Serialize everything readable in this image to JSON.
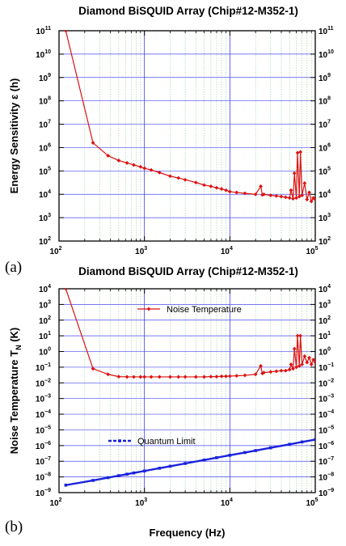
{
  "chart_data": [
    {
      "panel_label": "(a)",
      "type": "line",
      "title": "Diamond BiSQUID Array (Chip#12-M352-1)",
      "xlabel": "",
      "ylabel": "Energy Sensitivity ε (h)",
      "xscale": "log",
      "yscale": "log",
      "xlim": [
        100,
        100000
      ],
      "ylim": [
        100,
        100000000000
      ],
      "x_ticks": [
        100,
        1000,
        10000,
        100000
      ],
      "y_ticks": [
        100,
        1000,
        10000,
        100000,
        1000000,
        10000000,
        100000000,
        1000000000,
        10000000000,
        100000000000
      ],
      "grid": true,
      "right_axis_mirrored": true,
      "series": [
        {
          "name": "",
          "color": "#dd1111",
          "marker": "diamond",
          "x": [
            120,
            250,
            375,
            500,
            625,
            750,
            900,
            1000,
            1200,
            1500,
            2000,
            2500,
            3000,
            4000,
            5000,
            6000,
            7000,
            8000,
            9000,
            10000,
            12000,
            15000,
            20000,
            23000,
            24000,
            25000,
            30000,
            35000,
            40000,
            45000,
            50000,
            52000,
            55000,
            57000,
            60000,
            62000,
            65000,
            67000,
            70000,
            75000,
            80000,
            85000,
            90000,
            95000,
            100000
          ],
          "y": [
            100000000000,
            1600000,
            450000,
            280000,
            220000,
            180000,
            150000,
            130000,
            110000,
            85000,
            60000,
            50000,
            42000,
            32000,
            25000,
            22000,
            19000,
            17000,
            15000,
            13000,
            12000,
            11000,
            10000,
            22000,
            9500,
            10000,
            9000,
            8500,
            8000,
            7500,
            7000,
            15000,
            6500,
            80000,
            7000,
            600000,
            8000,
            650000,
            9000,
            30000,
            6000,
            12000,
            5000,
            7000,
            6000
          ]
        }
      ]
    },
    {
      "panel_label": "(b)",
      "type": "line",
      "title": "Diamond BiSQUID Array (Chip#12-M352-1)",
      "xlabel": "Frequency (Hz)",
      "ylabel": "Noise Temperature T",
      "ylabel_sub": "N",
      "ylabel_unit": " (K)",
      "xscale": "log",
      "yscale": "log",
      "xlim": [
        100,
        100000
      ],
      "ylim": [
        1e-09,
        10000
      ],
      "x_ticks": [
        100,
        1000,
        10000,
        100000
      ],
      "y_ticks": [
        1e-09,
        1e-08,
        1e-07,
        1e-06,
        1e-05,
        0.0001,
        0.001,
        0.01,
        0.1,
        1,
        10,
        100,
        1000,
        10000
      ],
      "grid": true,
      "right_axis_mirrored": true,
      "series": [
        {
          "name": "Noise Temperature",
          "color": "#dd1111",
          "marker": "diamond",
          "x": [
            120,
            250,
            375,
            500,
            625,
            750,
            900,
            1000,
            1200,
            1500,
            2000,
            2500,
            3000,
            4000,
            5000,
            6000,
            7000,
            8000,
            9000,
            10000,
            12000,
            15000,
            20000,
            23000,
            24000,
            25000,
            30000,
            35000,
            40000,
            45000,
            50000,
            52000,
            55000,
            57000,
            60000,
            62000,
            65000,
            67000,
            70000,
            75000,
            80000,
            85000,
            90000,
            95000,
            100000
          ],
          "y": [
            10000,
            0.08,
            0.035,
            0.025,
            0.024,
            0.024,
            0.024,
            0.024,
            0.024,
            0.024,
            0.024,
            0.024,
            0.024,
            0.024,
            0.024,
            0.025,
            0.025,
            0.026,
            0.026,
            0.027,
            0.028,
            0.03,
            0.035,
            0.12,
            0.04,
            0.045,
            0.05,
            0.055,
            0.06,
            0.06,
            0.07,
            0.15,
            0.08,
            1.5,
            0.1,
            10,
            0.12,
            10,
            0.15,
            0.5,
            0.2,
            0.4,
            0.15,
            0.3,
            0.2
          ]
        },
        {
          "name": "Quantum Limit",
          "color": "#1a22dd",
          "marker": "square",
          "x": [
            120,
            250,
            375,
            500,
            625,
            750,
            1000,
            1500,
            2000,
            3000,
            5000,
            7000,
            10000,
            15000,
            20000,
            30000,
            50000,
            70000,
            100000
          ],
          "y": [
            3e-09,
            6e-09,
            9e-09,
            1.2e-08,
            1.5e-08,
            1.8e-08,
            2.4e-08,
            3.6e-08,
            4.8e-08,
            7.2e-08,
            1.2e-07,
            1.7e-07,
            2.4e-07,
            3.6e-07,
            4.8e-07,
            7.2e-07,
            1.2e-06,
            1.7e-06,
            2.4e-06
          ]
        }
      ]
    }
  ]
}
